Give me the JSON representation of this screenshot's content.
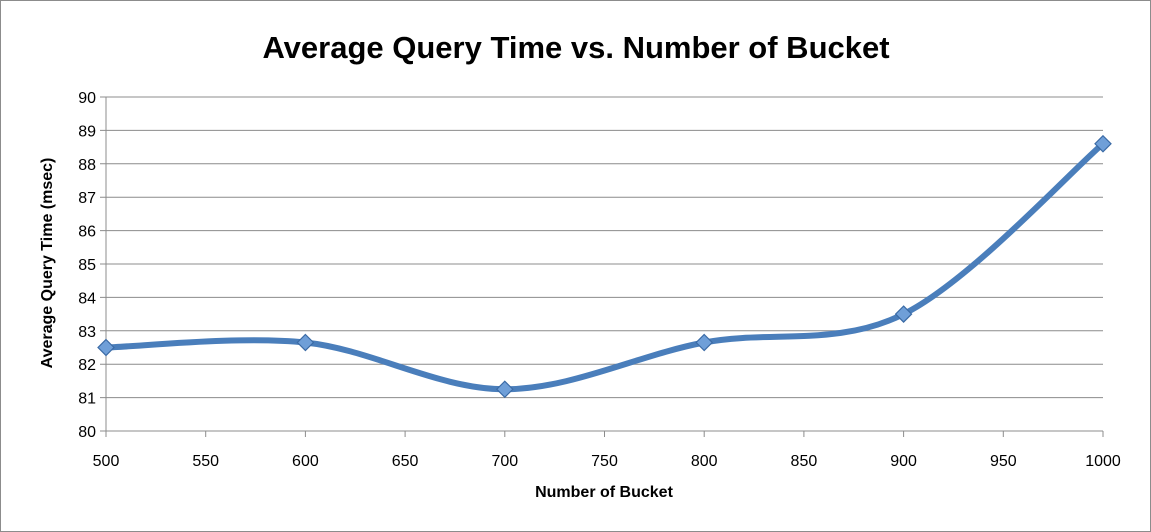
{
  "chart_data": {
    "type": "line",
    "title": "Average Query Time vs. Number of Bucket",
    "xlabel": "Number of Bucket",
    "ylabel": "Average Query Time (msec)",
    "x": [
      500,
      600,
      700,
      800,
      900,
      1000
    ],
    "series": [
      {
        "values": [
          82.5,
          82.65,
          81.25,
          82.65,
          83.5,
          88.6
        ]
      }
    ],
    "xlim": [
      500,
      1000
    ],
    "ylim": [
      80,
      90
    ],
    "xticks": [
      500,
      550,
      600,
      650,
      700,
      750,
      800,
      850,
      900,
      950,
      1000
    ],
    "yticks": [
      80,
      81,
      82,
      83,
      84,
      85,
      86,
      87,
      88,
      89,
      90
    ],
    "grid": true,
    "smooth": true,
    "marker": "diamond",
    "line_color": "#4a7ebb",
    "marker_color": "#6f9fd8"
  }
}
